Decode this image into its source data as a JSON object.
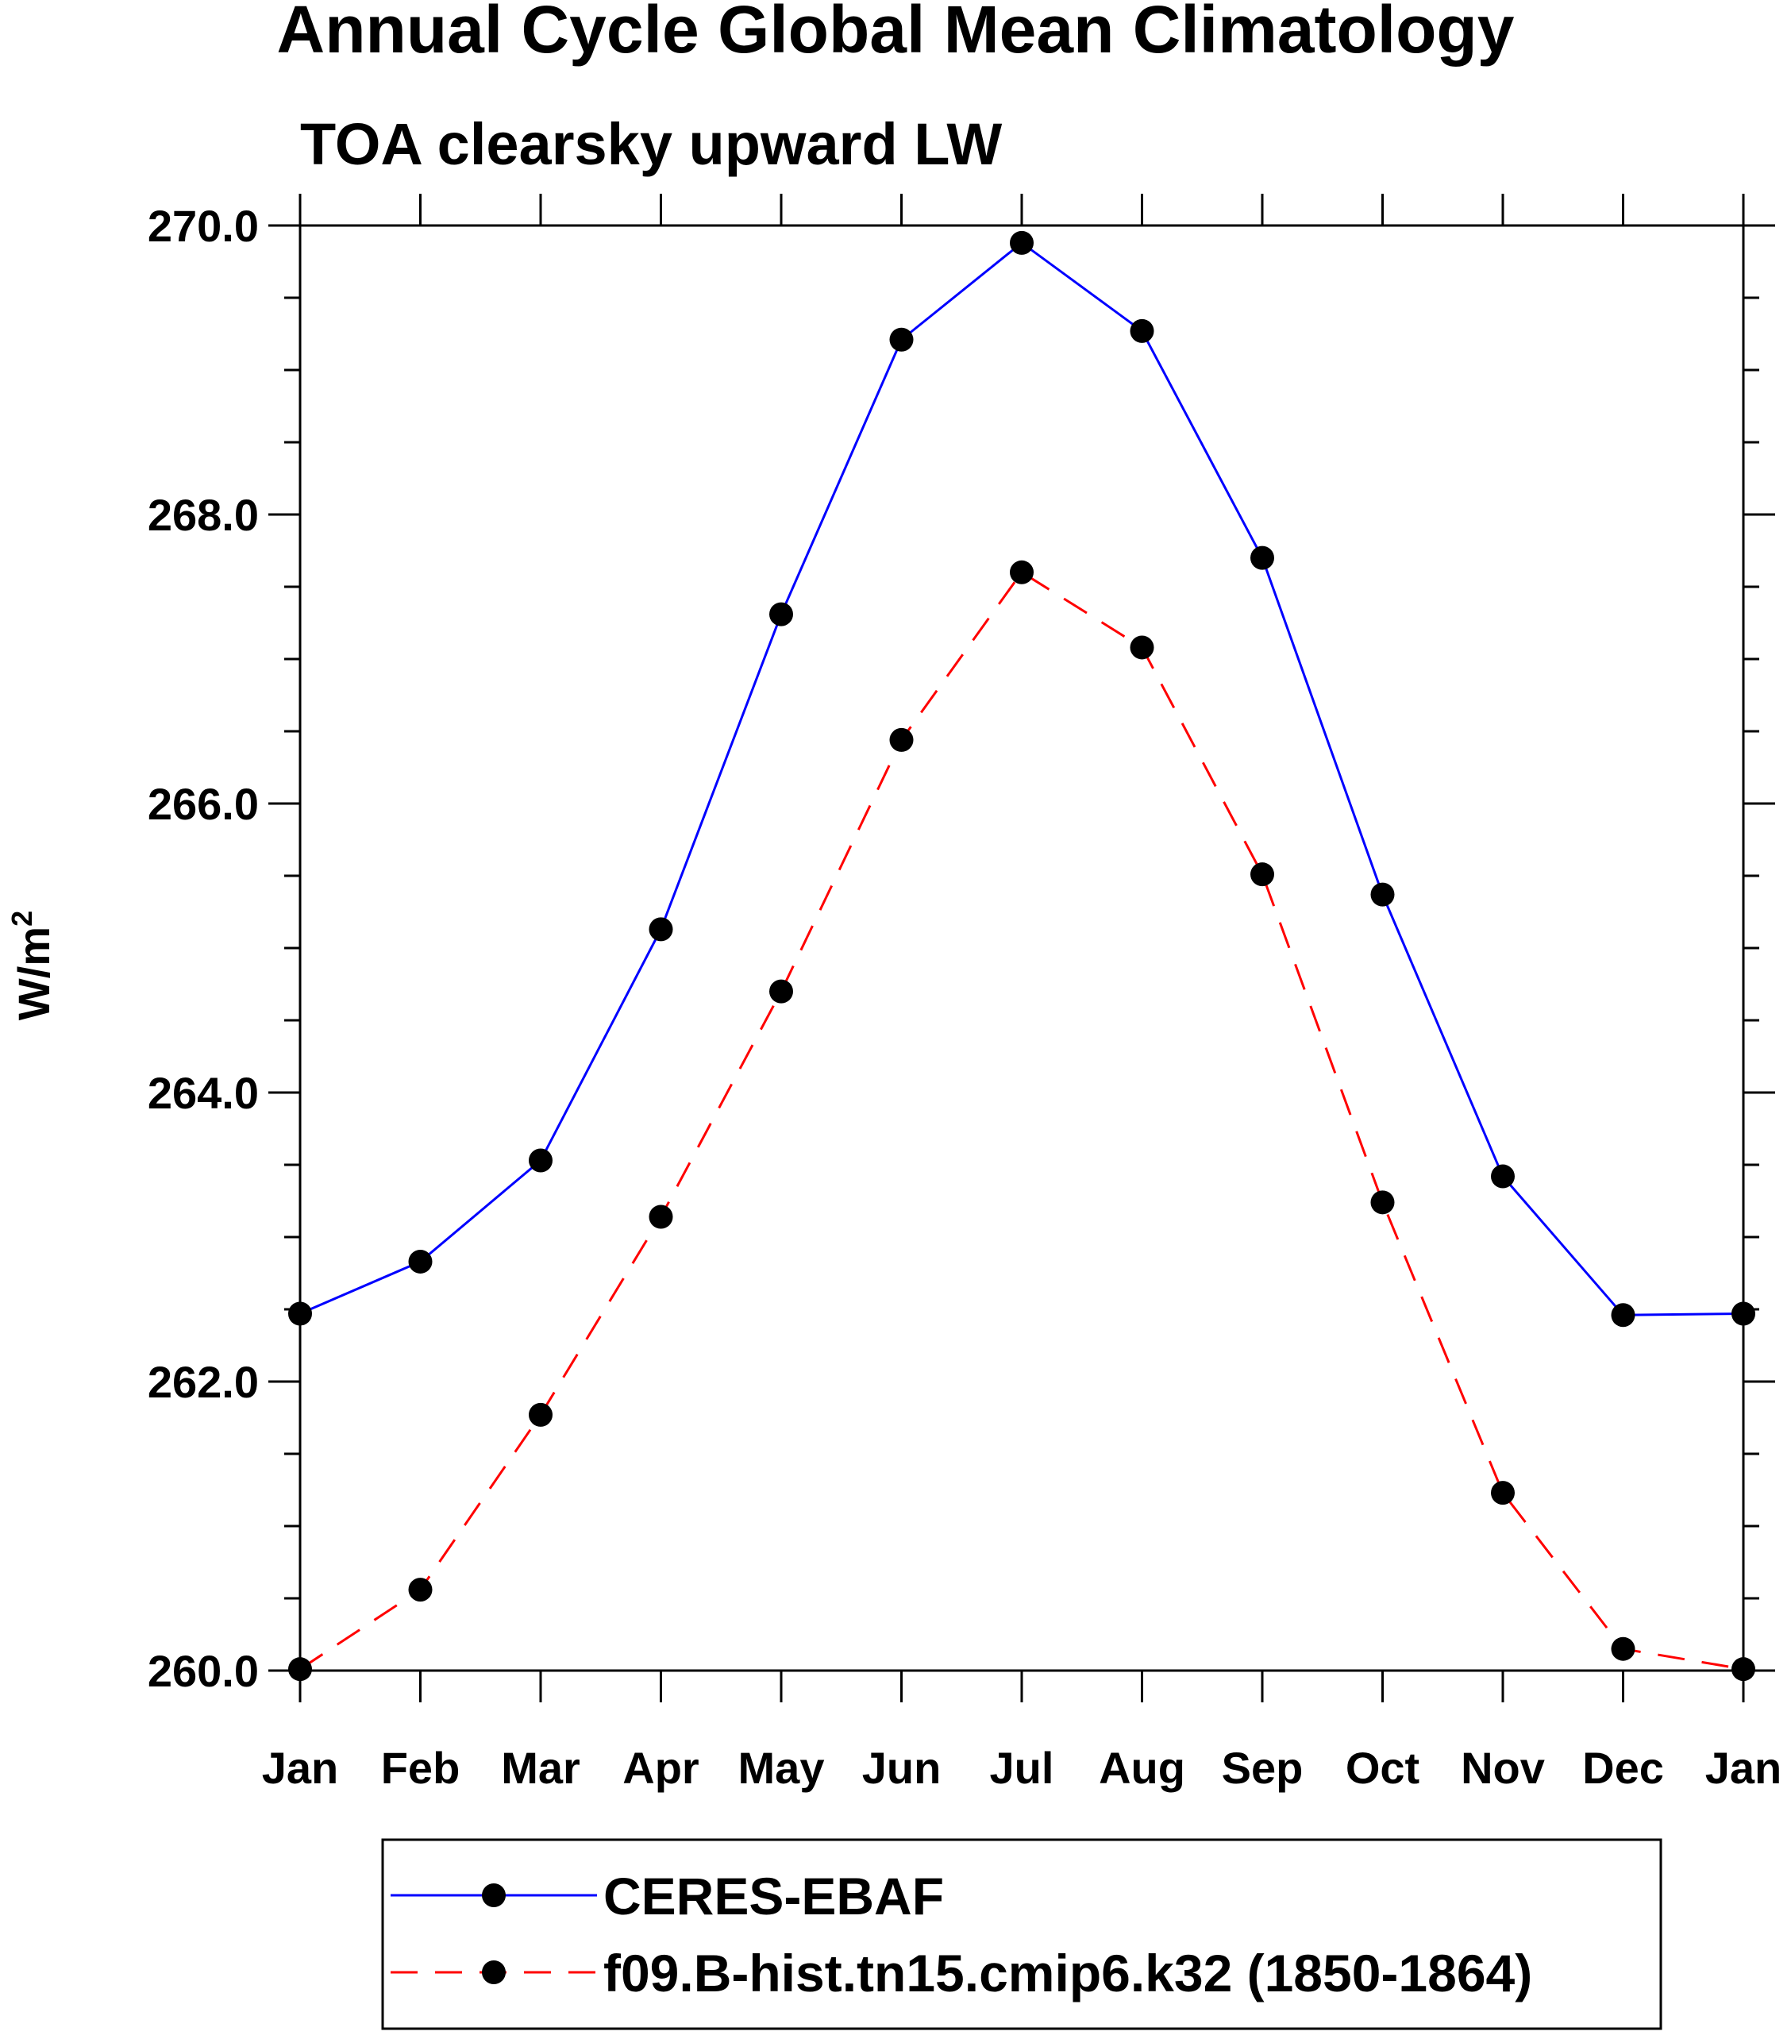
{
  "colors": {
    "ceres": "#0000ff",
    "model": "#ff0000",
    "axis": "#000000",
    "marker": "#000000"
  },
  "chart_data": {
    "type": "line",
    "title": "Annual Cycle Global Mean Climatology",
    "subtitle": "TOA clearsky upward LW",
    "xlabel": "",
    "ylabel": "W/m",
    "ylabel_sup": "2",
    "ylim": [
      260.0,
      270.0
    ],
    "yticks": [
      "260.0",
      "262.0",
      "264.0",
      "266.0",
      "268.0",
      "270.0"
    ],
    "categories": [
      "Jan",
      "Feb",
      "Mar",
      "Apr",
      "May",
      "Jun",
      "Jul",
      "Aug",
      "Sep",
      "Oct",
      "Nov",
      "Dec",
      "Jan"
    ],
    "series": [
      {
        "name": "CERES-EBAF",
        "style": "solid",
        "values": [
          262.47,
          262.83,
          263.53,
          265.13,
          267.31,
          269.21,
          269.88,
          269.27,
          267.7,
          265.37,
          263.42,
          262.46,
          262.47
        ]
      },
      {
        "name": "f09.B-hist.tn15.cmip6.k32 (1850-1864)",
        "style": "dashed",
        "values": [
          260.01,
          260.56,
          261.77,
          263.14,
          264.7,
          266.44,
          267.6,
          267.08,
          265.51,
          263.24,
          261.23,
          260.15,
          260.01
        ]
      }
    ],
    "legend_position": "bottom-center"
  }
}
